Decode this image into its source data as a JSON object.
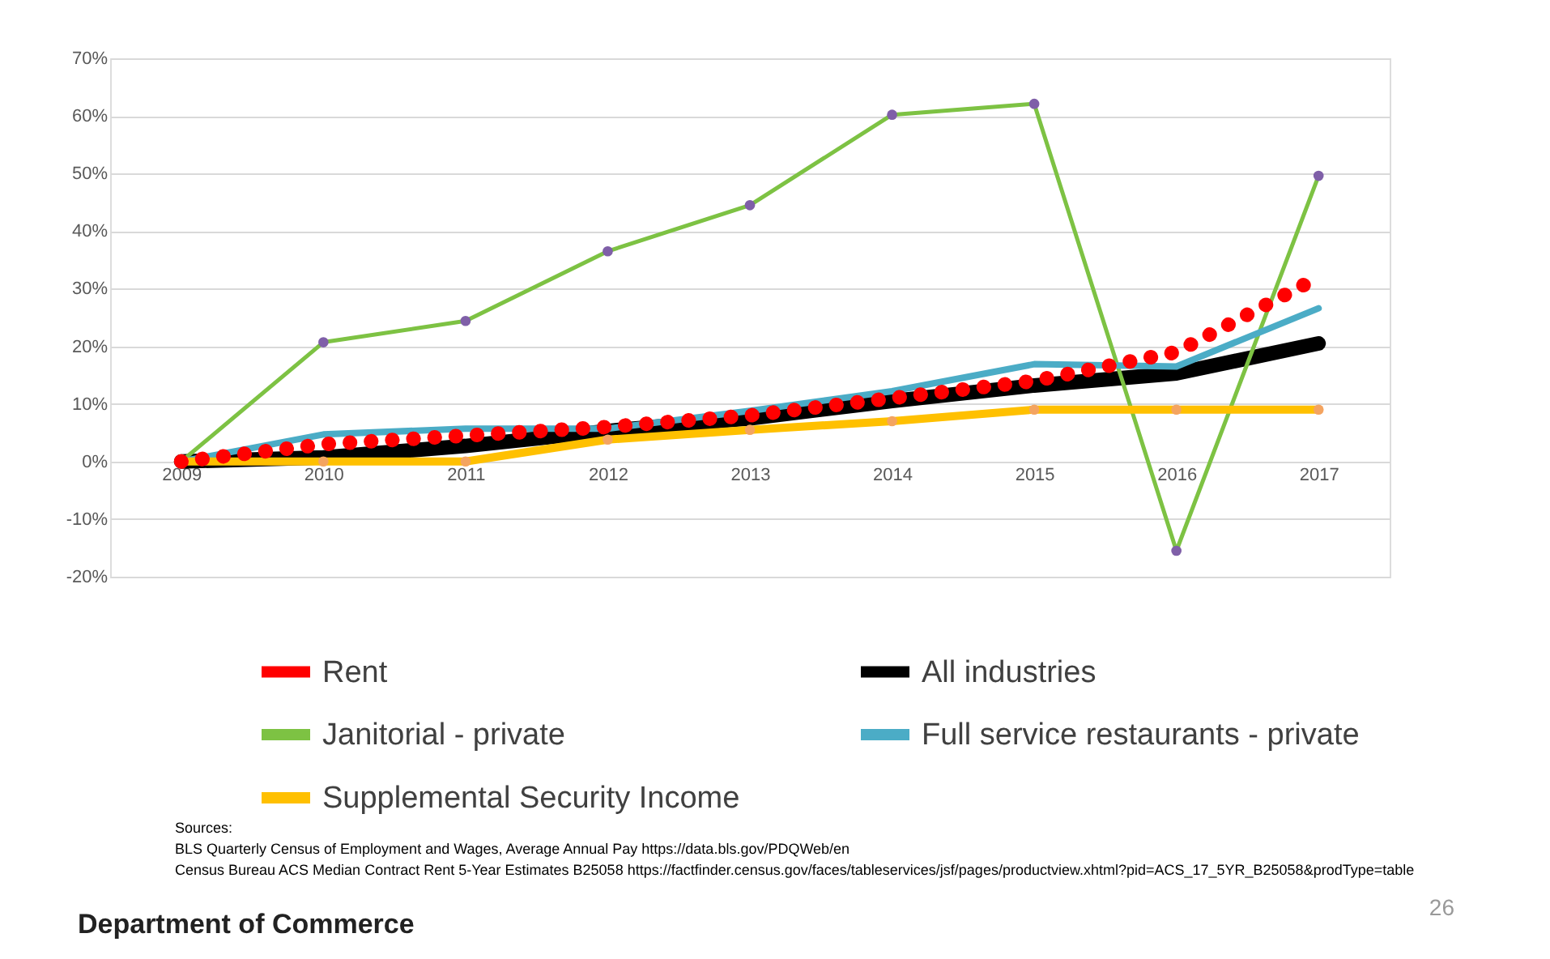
{
  "chart_data": {
    "type": "line",
    "categories": [
      "2009",
      "2010",
      "2011",
      "2012",
      "2013",
      "2014",
      "2015",
      "2016",
      "2017"
    ],
    "series": [
      {
        "name": "Rent",
        "color": "#ff0000",
        "line_style": "dotted",
        "values": [
          0,
          3,
          4.5,
          6,
          8,
          11,
          14,
          19,
          32
        ]
      },
      {
        "name": "All industries",
        "color": "#000000",
        "values": [
          0,
          0.7,
          2.7,
          5.3,
          7.5,
          10.5,
          13.2,
          15.3,
          20.5
        ]
      },
      {
        "name": "Janitorial - private",
        "color": "#7dc243",
        "marker": "circle",
        "values": [
          0,
          20.7,
          24.4,
          36.5,
          44.5,
          60.2,
          62.1,
          -15.5,
          49.6
        ]
      },
      {
        "name": "Full service restaurants - private",
        "color": "#4bacc6",
        "values": [
          0,
          4.7,
          5.7,
          5.7,
          8.8,
          12.2,
          16.9,
          16.5,
          26.6
        ]
      },
      {
        "name": "Supplemental Security Income",
        "color": "#ffc000",
        "marker": "circle",
        "values": [
          0,
          0,
          0,
          3.8,
          5.5,
          7,
          9,
          9,
          9
        ]
      }
    ],
    "ylim": [
      -20,
      70
    ],
    "yticks": [
      {
        "value": -20,
        "label": "-20%"
      },
      {
        "value": -10,
        "label": "-10%"
      },
      {
        "value": 0,
        "label": "0%"
      },
      {
        "value": 10,
        "label": "10%"
      },
      {
        "value": 20,
        "label": "20%"
      },
      {
        "value": 30,
        "label": "30%"
      },
      {
        "value": 40,
        "label": "40%"
      },
      {
        "value": 50,
        "label": "50%"
      },
      {
        "value": 60,
        "label": "60%"
      },
      {
        "value": 70,
        "label": "70%"
      }
    ],
    "grid": "y",
    "legend": "bottom",
    "annotations": [
      "Sources:",
      "BLS Quarterly Census of Employment and Wages, Average Annual Pay https://data.bls.gov/PDQWeb/en",
      "Census Bureau ACS Median Contract Rent 5-Year Estimates B25058 https://factfinder.census.gov/faces/tableservices/jsf/pages/productview.xhtml?pid=ACS_17_5YR_B25058&prodType=table",
      "Department of Commerce",
      "26"
    ]
  }
}
